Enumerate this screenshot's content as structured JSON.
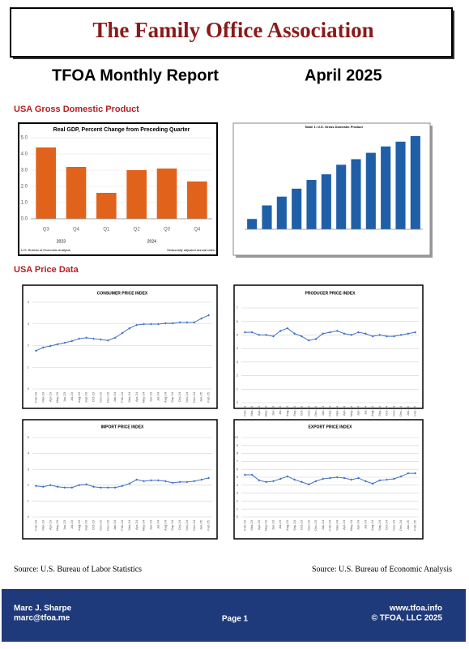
{
  "header": {
    "title": "The Family Office Association",
    "report": "TFOA Monthly Report",
    "date": "April 2025"
  },
  "sections": [
    "USA Gross Domestic Product",
    "USA Price Data"
  ],
  "chart_data": [
    {
      "type": "bar",
      "title": "Real GDP, Percent Change from Preceding Quarter",
      "categories": [
        "Q3",
        "Q4",
        "Q1",
        "Q2",
        "Q3",
        "Q4"
      ],
      "year_labels": [
        "2023",
        "2024"
      ],
      "values": [
        4.4,
        3.2,
        1.6,
        3.0,
        3.1,
        2.3
      ],
      "color": "#e0621b",
      "ylim": [
        0,
        5
      ],
      "yticks": [
        {
          "value": 0,
          "label": "0.0"
        },
        {
          "value": 1,
          "label": "1.0"
        },
        {
          "value": 2,
          "label": "2.0"
        },
        {
          "value": 3,
          "label": "3.0"
        },
        {
          "value": 4,
          "label": "4.0"
        },
        {
          "value": 5,
          "label": "5.0"
        }
      ],
      "notes": [
        "U.S. Bureau of Economic Analysis",
        "Seasonally adjusted annual rates"
      ]
    },
    {
      "type": "bar",
      "title": "Table 1: U.S. Gross Domestic Product",
      "values": [
        24650,
        25500,
        26050,
        26550,
        27100,
        27450,
        28050,
        28400,
        28800,
        29200,
        29500,
        29850
      ],
      "color": "#1f5fa8",
      "ylim": [
        24000,
        30000
      ]
    },
    {
      "type": "line",
      "title": "CONSUMER PRICE INDEX",
      "categories": [
        "Feb-23",
        "Mar-23",
        "Apr-23",
        "May-23",
        "Jun-23",
        "Jul-23",
        "Aug-23",
        "Sep-23",
        "Oct-23",
        "Nov-23",
        "Dec-23",
        "Jan-24",
        "Feb-24",
        "Mar-24",
        "Apr-24",
        "May-24",
        "Jun-24",
        "Jul-24",
        "Aug-24",
        "Sep-24",
        "Oct-24",
        "Nov-24",
        "Dec-24",
        "Jan-25",
        "Feb-25"
      ],
      "values": [
        1.76,
        1.91,
        1.98,
        2.06,
        2.13,
        2.21,
        2.32,
        2.36,
        2.32,
        2.28,
        2.24,
        2.36,
        2.58,
        2.8,
        2.95,
        2.99,
        2.99,
        2.99,
        3.03,
        3.03,
        3.07,
        3.07,
        3.07,
        3.25,
        3.4
      ],
      "color": "#4472c4",
      "ylim": [
        0,
        4
      ],
      "yticks": [
        0,
        1,
        2,
        3,
        4
      ]
    },
    {
      "type": "line",
      "title": "PRODUCER PRICE INDEX",
      "categories": [
        "Feb-23",
        "Mar-23",
        "Apr-23",
        "May-23",
        "Jun-23",
        "Jul-23",
        "Aug-23",
        "Sep-23",
        "Oct-23",
        "Nov-23",
        "Dec-23",
        "Jan-24",
        "Feb-24",
        "Mar-24",
        "Apr-24",
        "May-24",
        "Jun-24",
        "Jul-24",
        "Aug-24",
        "Sep-24",
        "Oct-24",
        "Nov-24",
        "Dec-24",
        "Jan-25",
        "Feb-25"
      ],
      "values": [
        5.2,
        5.2,
        5.0,
        5.0,
        4.9,
        5.3,
        5.5,
        5.1,
        4.9,
        4.6,
        4.7,
        5.1,
        5.2,
        5.3,
        5.1,
        5.0,
        5.2,
        5.1,
        4.9,
        5.0,
        4.9,
        4.9,
        5.0,
        5.1,
        5.2
      ],
      "color": "#4472c4",
      "ylim": [
        0,
        7
      ],
      "yticks": [
        0,
        1,
        2,
        3,
        4,
        5,
        6,
        7
      ]
    },
    {
      "type": "line",
      "title": "IMPORT PRICE INDEX",
      "categories": [
        "Feb-23",
        "Mar-23",
        "Apr-23",
        "May-23",
        "Jun-23",
        "Jul-23",
        "Aug-23",
        "Sep-23",
        "Oct-23",
        "Nov-23",
        "Dec-23",
        "Jan-24",
        "Feb-24",
        "Mar-24",
        "Apr-24",
        "May-24",
        "Jun-24",
        "Jul-24",
        "Aug-24",
        "Sep-24",
        "Oct-24",
        "Nov-24",
        "Dec-24",
        "Jan-25",
        "Feb-25"
      ],
      "values": [
        1.95,
        1.9,
        2.0,
        1.9,
        1.85,
        1.85,
        2.0,
        2.05,
        1.9,
        1.85,
        1.85,
        1.85,
        1.95,
        2.1,
        2.35,
        2.25,
        2.3,
        2.3,
        2.25,
        2.15,
        2.2,
        2.2,
        2.25,
        2.35,
        2.45
      ],
      "color": "#4472c4",
      "ylim": [
        0,
        5
      ],
      "yticks": [
        0,
        1,
        2,
        3,
        4,
        5
      ]
    },
    {
      "type": "line",
      "title": "EXPORT PRICE INDEX",
      "categories": [
        "Feb-23",
        "Mar-23",
        "Apr-23",
        "May-23",
        "Jun-23",
        "Jul-23",
        "Aug-23",
        "Sep-23",
        "Oct-23",
        "Nov-23",
        "Dec-23",
        "Jan-24",
        "Feb-24",
        "Mar-24",
        "Apr-24",
        "May-24",
        "Jun-24",
        "Jul-24",
        "Aug-24",
        "Sep-24",
        "Oct-24",
        "Nov-24",
        "Dec-24",
        "Jan-25",
        "Feb-25"
      ],
      "values": [
        5.3,
        5.3,
        4.6,
        4.4,
        4.5,
        4.8,
        5.1,
        4.7,
        4.4,
        4.1,
        4.5,
        4.8,
        4.9,
        5.0,
        4.9,
        4.7,
        4.9,
        4.5,
        4.2,
        4.6,
        4.7,
        4.8,
        5.1,
        5.5,
        5.5
      ],
      "color": "#4472c4",
      "ylim": [
        0,
        10
      ],
      "yticks": [
        0,
        1,
        2,
        3,
        4,
        5,
        6,
        7,
        8,
        9,
        10
      ]
    }
  ],
  "sources": [
    "Source: U.S. Bureau of Labor Statistics",
    "Source: U.S. Bureau of Economic Analysis"
  ],
  "footer": {
    "name": "Marc J. Sharpe",
    "email": "marc@tfoa.me",
    "page": "Page 1",
    "site": "www.tfoa.info",
    "copyright": "© TFOA, LLC 2025"
  }
}
